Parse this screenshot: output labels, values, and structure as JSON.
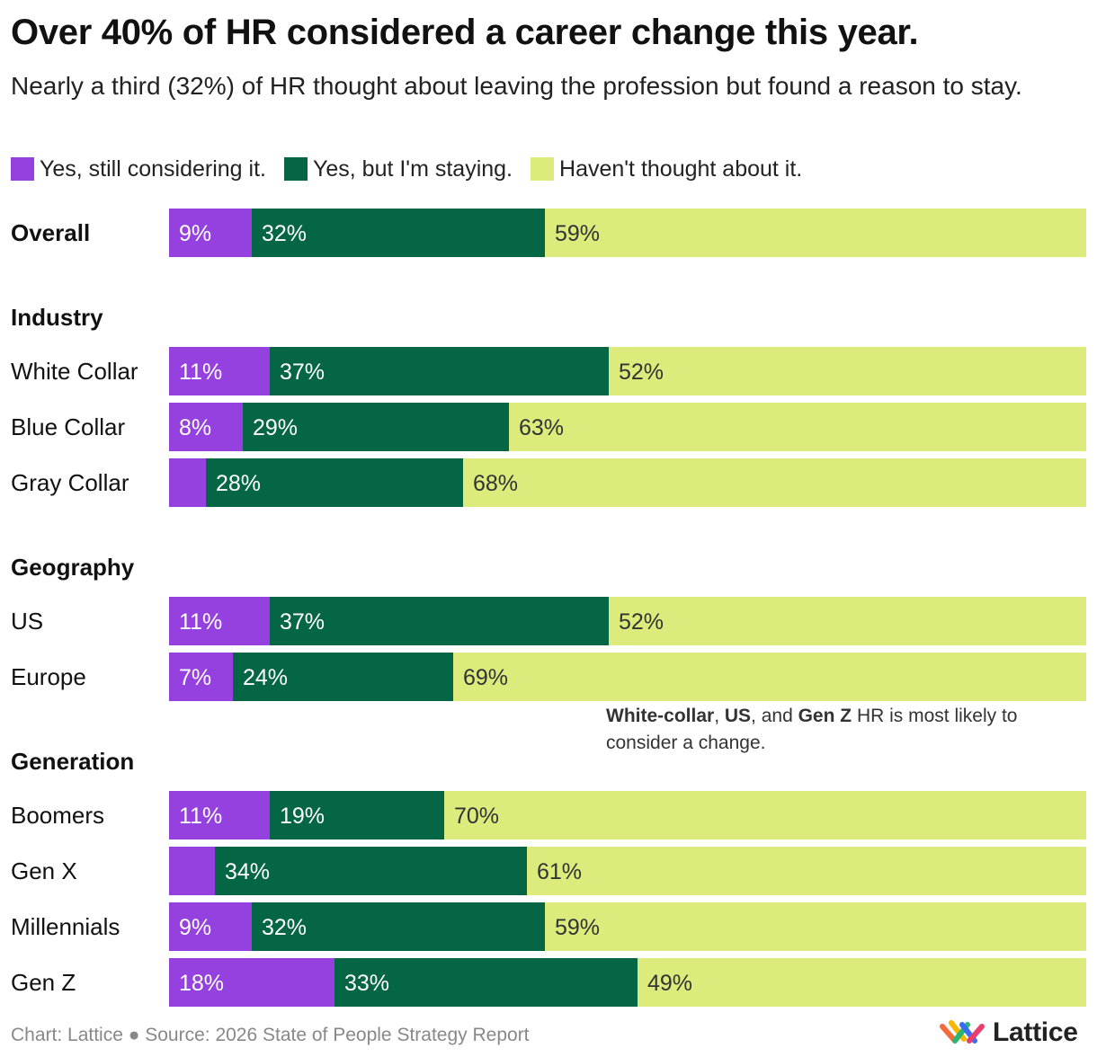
{
  "chart_data": {
    "type": "bar",
    "orientation": "horizontal",
    "stacked": true,
    "title": "Over 40% of HR considered a career change this year.",
    "subtitle": "Nearly a third (32%) of HR thought about leaving the profession but found a reason to stay.",
    "xlim": [
      0,
      100
    ],
    "series": [
      {
        "name": "Yes, still considering it.",
        "color": "#9541DF",
        "label_color": "#ffffff"
      },
      {
        "name": "Yes, but I'm staying.",
        "color": "#056646",
        "label_color": "#ffffff"
      },
      {
        "name": "Haven't thought about it.",
        "color": "#DCEB7C",
        "label_color": "#333333"
      }
    ],
    "groups": [
      {
        "title": null,
        "rows": [
          {
            "label": "Overall",
            "bold": true,
            "values": [
              9,
              32,
              59
            ],
            "labels": [
              "9%",
              "32%",
              "59%"
            ]
          }
        ]
      },
      {
        "title": "Industry",
        "rows": [
          {
            "label": "White Collar",
            "values": [
              11,
              37,
              52
            ],
            "labels": [
              "11%",
              "37%",
              "52%"
            ]
          },
          {
            "label": "Blue Collar",
            "values": [
              8,
              29,
              63
            ],
            "labels": [
              "8%",
              "29%",
              "63%"
            ]
          },
          {
            "label": "Gray Collar",
            "values": [
              4,
              28,
              68
            ],
            "labels": [
              "",
              "28%",
              "68%"
            ]
          }
        ]
      },
      {
        "title": "Geography",
        "rows": [
          {
            "label": "US",
            "values": [
              11,
              37,
              52
            ],
            "labels": [
              "11%",
              "37%",
              "52%"
            ]
          },
          {
            "label": "Europe",
            "values": [
              7,
              24,
              69
            ],
            "labels": [
              "7%",
              "24%",
              "69%"
            ]
          }
        ]
      },
      {
        "title": "Generation",
        "rows": [
          {
            "label": "Boomers",
            "values": [
              11,
              19,
              70
            ],
            "labels": [
              "11%",
              "19%",
              "70%"
            ]
          },
          {
            "label": "Gen X",
            "values": [
              5,
              34,
              61
            ],
            "labels": [
              "",
              "34%",
              "61%"
            ]
          },
          {
            "label": "Millennials",
            "values": [
              9,
              32,
              59
            ],
            "labels": [
              "9%",
              "32%",
              "59%"
            ]
          },
          {
            "label": "Gen Z",
            "values": [
              18,
              33,
              49
            ],
            "labels": [
              "18%",
              "33%",
              "49%"
            ]
          }
        ]
      }
    ]
  },
  "annotation": {
    "b1": "White-collar",
    "t1": ", ",
    "b2": "US",
    "t2": ", and ",
    "b3": "Gen Z",
    "t3": " HR is most likely to consider a change."
  },
  "footer": {
    "text": "Chart: Lattice ● Source: 2026 State of People Strategy Report"
  },
  "logo": {
    "text": "Lattice",
    "colors": [
      "#F26B3A",
      "#F5B700",
      "#2BB673",
      "#3A6CF4",
      "#E83F6F"
    ]
  }
}
